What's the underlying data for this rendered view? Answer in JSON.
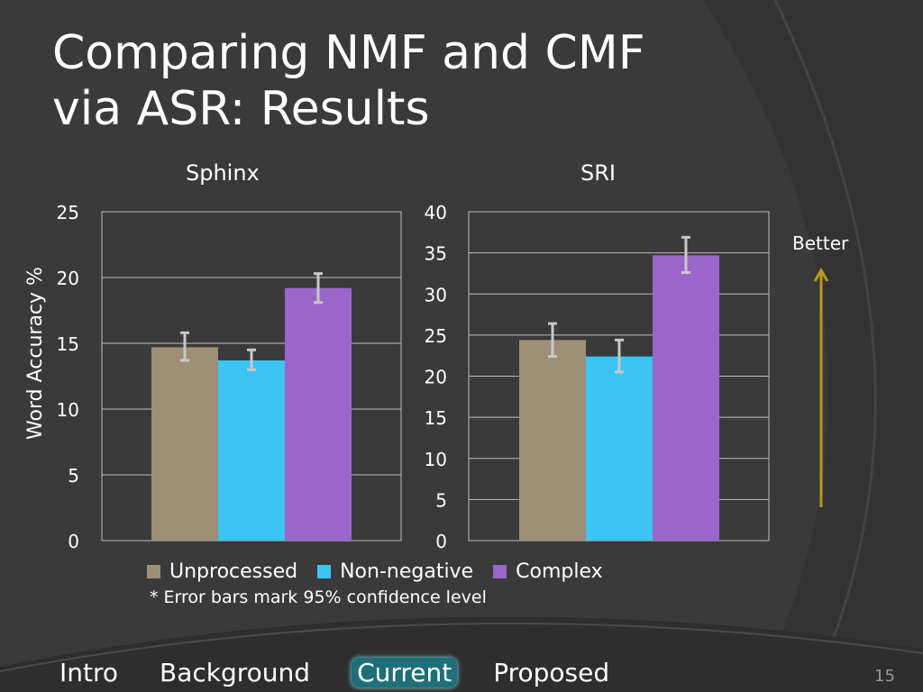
{
  "slide": {
    "title_lines": [
      "Comparing NMF and CMF",
      "via ASR: Results"
    ],
    "better_label": "Better",
    "note": "* Error bars mark 95% confidence level",
    "page_number": "15",
    "colors": {
      "background": "#3b3b3b",
      "unprocessed": "#9e8f76",
      "non_negative": "#3cc4f5",
      "complex": "#9b66cc",
      "arrow": "#b89a1a",
      "error_bar": "#c8c8c8"
    }
  },
  "nav": {
    "items": [
      {
        "label": "Intro",
        "active": false
      },
      {
        "label": "Background",
        "active": false
      },
      {
        "label": "Current",
        "active": true
      },
      {
        "label": "Proposed",
        "active": false
      }
    ]
  },
  "legend": {
    "items": [
      {
        "label": "Unprocessed",
        "color": "#9e8f76"
      },
      {
        "label": "Non-negative",
        "color": "#3cc4f5"
      },
      {
        "label": "Complex",
        "color": "#9b66cc"
      }
    ]
  },
  "chart_data": [
    {
      "type": "bar",
      "title": "Sphinx",
      "ylabel": "Word Accuracy %",
      "ylim": [
        0,
        25
      ],
      "yticks": [
        0,
        5,
        10,
        15,
        20,
        25
      ],
      "grid": true,
      "series": [
        {
          "name": "Unprocessed",
          "value": 14.7,
          "err_low": 13.7,
          "err_high": 15.8
        },
        {
          "name": "Non-negative",
          "value": 13.7,
          "err_low": 13.0,
          "err_high": 14.5
        },
        {
          "name": "Complex",
          "value": 19.2,
          "err_low": 18.1,
          "err_high": 20.3
        }
      ]
    },
    {
      "type": "bar",
      "title": "SRI",
      "ylabel": "",
      "ylim": [
        0,
        40
      ],
      "yticks": [
        0,
        5,
        10,
        15,
        20,
        25,
        30,
        35,
        40
      ],
      "grid": true,
      "series": [
        {
          "name": "Unprocessed",
          "value": 24.4,
          "err_low": 22.4,
          "err_high": 26.4
        },
        {
          "name": "Non-negative",
          "value": 22.4,
          "err_low": 20.5,
          "err_high": 24.4
        },
        {
          "name": "Complex",
          "value": 34.7,
          "err_low": 32.6,
          "err_high": 36.9
        }
      ]
    }
  ]
}
